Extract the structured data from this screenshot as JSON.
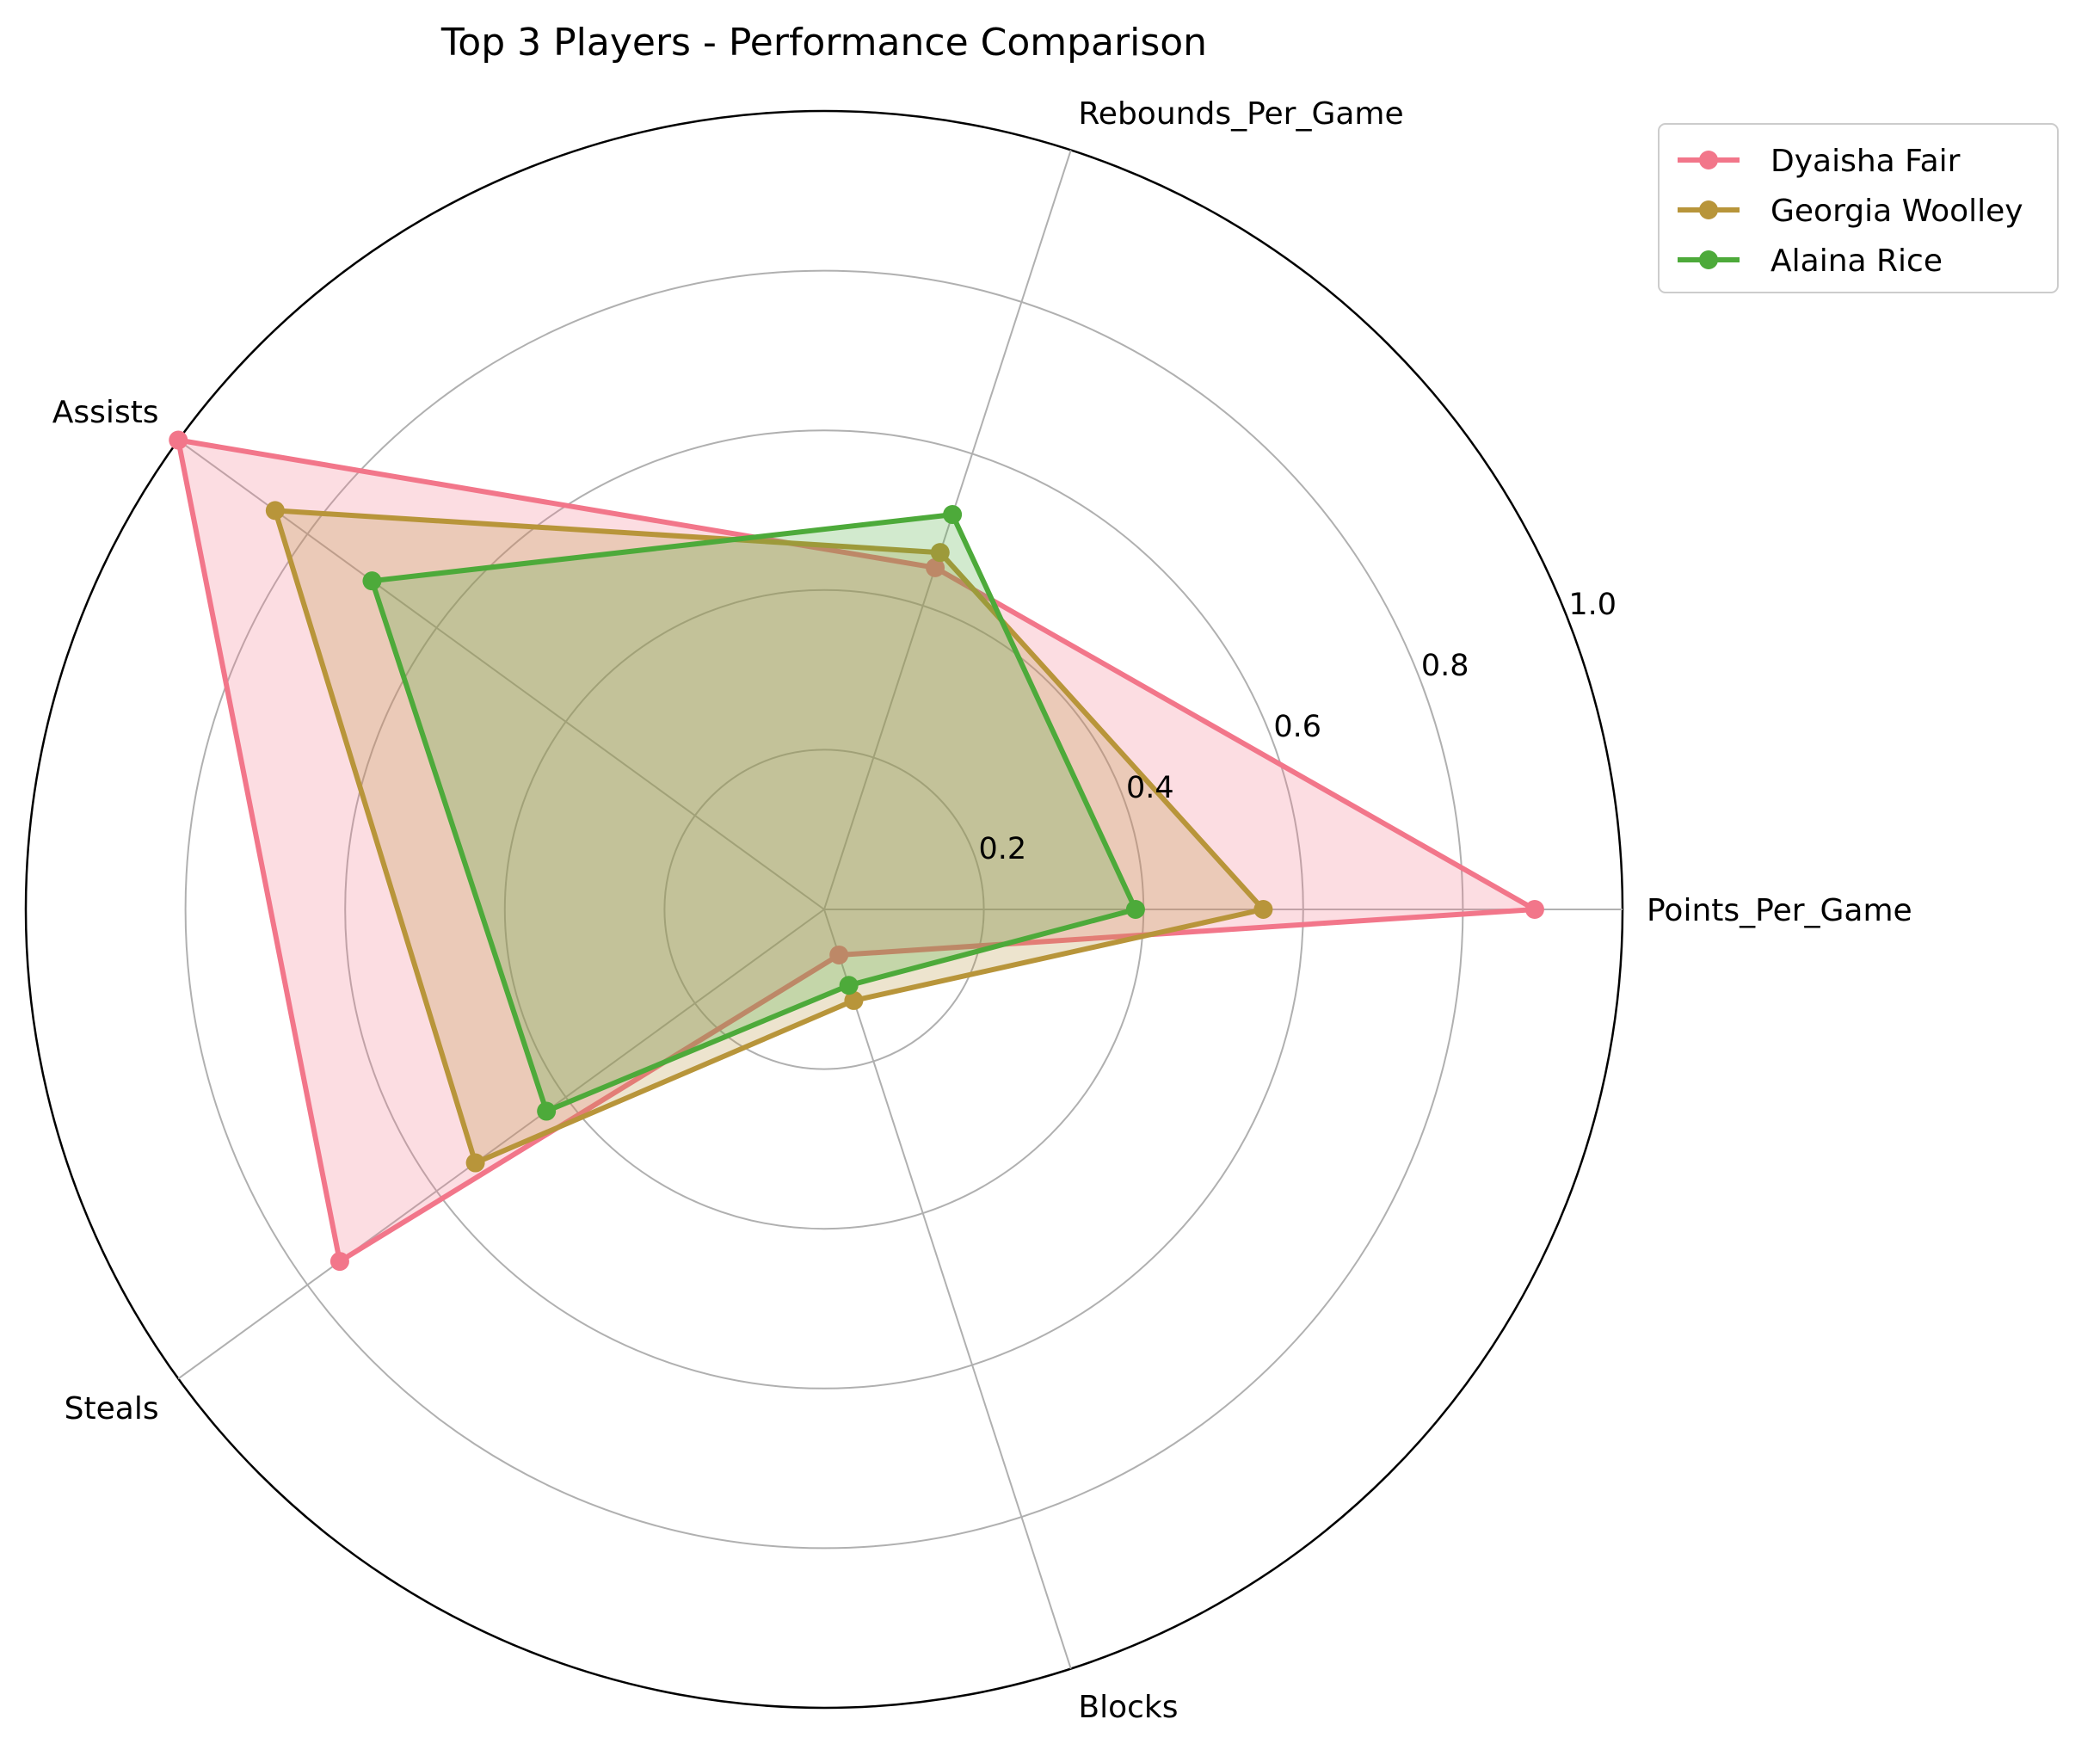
{
  "chart_data": {
    "type": "radar",
    "title": "Top 3 Players - Performance Comparison",
    "axes": [
      "Points_Per_Game",
      "Rebounds_Per_Game",
      "Blocks",
      "Steals",
      "Assists"
    ],
    "axis_order_counterclockwise": [
      "Points_Per_Game",
      "Rebounds_Per_Game",
      "Assists",
      "Steals",
      "Blocks"
    ],
    "radial_ticks": [
      "0.2",
      "0.4",
      "0.6",
      "0.8",
      "1.0"
    ],
    "radial_tick_values": [
      0.2,
      0.4,
      0.6,
      0.8,
      1.0
    ],
    "rlim": [
      0,
      1.0
    ],
    "grid": true,
    "legend_position": "upper right, outside",
    "series": [
      {
        "name": "Dyaisha Fair",
        "color": "#f2768a",
        "values": {
          "Points_Per_Game": 0.89,
          "Rebounds_Per_Game": 0.45,
          "Assists": 1.0,
          "Steals": 0.75,
          "Blocks": 0.06
        }
      },
      {
        "name": "Georgia Woolley",
        "color": "#b8953a",
        "values": {
          "Points_Per_Game": 0.55,
          "Rebounds_Per_Game": 0.47,
          "Assists": 0.85,
          "Steals": 0.54,
          "Blocks": 0.12
        }
      },
      {
        "name": "Alaina Rice",
        "color": "#4daa3a",
        "values": {
          "Points_Per_Game": 0.39,
          "Rebounds_Per_Game": 0.52,
          "Assists": 0.7,
          "Steals": 0.43,
          "Blocks": 0.1
        }
      }
    ]
  }
}
